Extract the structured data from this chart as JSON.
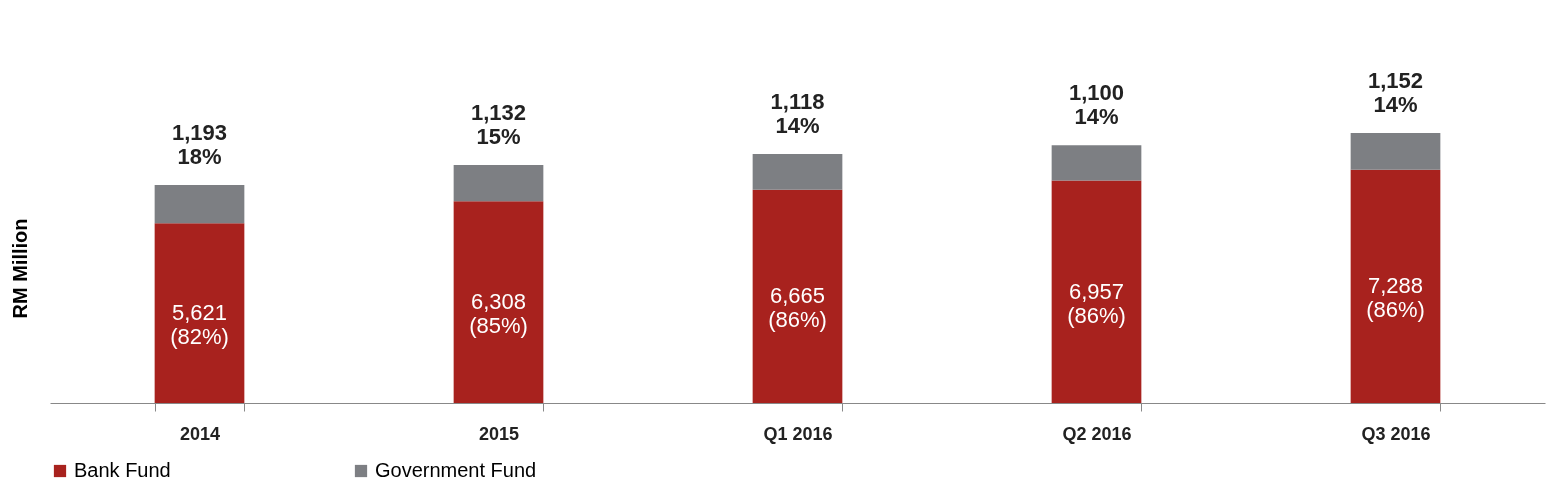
{
  "chart_data": {
    "type": "bar",
    "stacked": true,
    "ylabel": "RM Million",
    "categories": [
      "2014",
      "2015",
      "Q1 2016",
      "Q2 2016",
      "Q3 2016"
    ],
    "legend": "bottom",
    "series": [
      {
        "name": "Bank Fund",
        "color": "#a8221e",
        "values": [
          5621,
          6308,
          6665,
          6957,
          7288
        ],
        "value_labels": [
          "5,621\n(82%)",
          "6,308\n(85%)",
          "6,665\n(86%)",
          "6,957\n(86%)",
          "7,288\n(86%)"
        ]
      },
      {
        "name": "Government Fund",
        "color": "#7d7f83",
        "values": [
          1193,
          1132,
          1118,
          1100,
          1152
        ],
        "value_labels": [
          "1,193\n18%",
          "1,132\n15%",
          "1,118\n14%",
          "1,100\n14%",
          "1,152\n14%"
        ]
      }
    ]
  }
}
